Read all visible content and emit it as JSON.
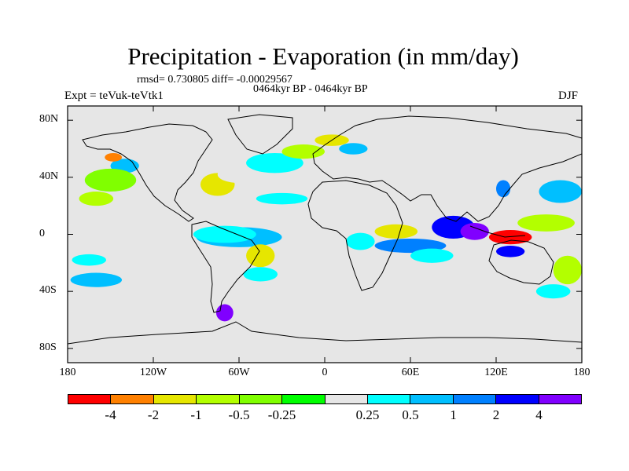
{
  "title": "Precipitation - Evaporation (in mm/day)",
  "stats": "rmsd= 0.730805 diff= -0.00029567",
  "period": "0464kyr BP - 0464kyr BP",
  "experiment": "Expt = teVuk-teVtk1",
  "season": "DJF",
  "map": {
    "lon_range": [
      -180,
      180
    ],
    "lat_range": [
      -90,
      90
    ],
    "background_color": "#e6e6e6",
    "x_ticks": [
      {
        "lon": -180,
        "label": "180"
      },
      {
        "lon": -120,
        "label": "120W"
      },
      {
        "lon": -60,
        "label": "60W"
      },
      {
        "lon": 0,
        "label": "0"
      },
      {
        "lon": 60,
        "label": "60E"
      },
      {
        "lon": 120,
        "label": "120E"
      },
      {
        "lon": 180,
        "label": "180"
      }
    ],
    "y_ticks": [
      {
        "lat": 80,
        "label": "80N"
      },
      {
        "lat": 40,
        "label": "40N"
      },
      {
        "lat": 0,
        "label": "0"
      },
      {
        "lat": -40,
        "label": "40S"
      },
      {
        "lat": -80,
        "label": "80S"
      }
    ],
    "anomalies": [
      {
        "lon": -60,
        "lat": -2,
        "rlon": 30,
        "rlat": 7,
        "level": 8
      },
      {
        "lon": -70,
        "lat": 0,
        "rlon": 22,
        "rlat": 6,
        "level": 7
      },
      {
        "lon": -150,
        "lat": -10,
        "rlon": 28,
        "rlat": 4,
        "level": 6
      },
      {
        "lon": -165,
        "lat": -18,
        "rlon": 12,
        "rlat": 4,
        "level": 7
      },
      {
        "lon": -140,
        "lat": 48,
        "rlon": 10,
        "rlat": 5,
        "level": 8
      },
      {
        "lon": -148,
        "lat": 54,
        "rlon": 6,
        "rlat": 3,
        "level": 1
      },
      {
        "lon": -150,
        "lat": 38,
        "rlon": 18,
        "rlat": 8,
        "level": 4
      },
      {
        "lon": -160,
        "lat": 25,
        "rlon": 12,
        "rlat": 5,
        "level": 3
      },
      {
        "lon": -75,
        "lat": 35,
        "rlon": 12,
        "rlat": 8,
        "level": 2
      },
      {
        "lon": -60,
        "lat": 42,
        "rlon": 15,
        "rlat": 6,
        "level": 6
      },
      {
        "lon": -35,
        "lat": 50,
        "rlon": 20,
        "rlat": 7,
        "level": 7
      },
      {
        "lon": -15,
        "lat": 58,
        "rlon": 15,
        "rlat": 5,
        "level": 3
      },
      {
        "lon": 5,
        "lat": 66,
        "rlon": 12,
        "rlat": 4,
        "level": 2
      },
      {
        "lon": 20,
        "lat": 60,
        "rlon": 10,
        "rlat": 4,
        "level": 8
      },
      {
        "lon": -90,
        "lat": 24,
        "rlon": 15,
        "rlat": 4,
        "level": 6
      },
      {
        "lon": -30,
        "lat": 25,
        "rlon": 18,
        "rlat": 4,
        "level": 7
      },
      {
        "lon": -45,
        "lat": -15,
        "rlon": 10,
        "rlat": 8,
        "level": 2
      },
      {
        "lon": -45,
        "lat": -28,
        "rlon": 12,
        "rlat": 5,
        "level": 7
      },
      {
        "lon": -120,
        "lat": -25,
        "rlon": 25,
        "rlat": 6,
        "level": 6
      },
      {
        "lon": -160,
        "lat": -32,
        "rlon": 18,
        "rlat": 5,
        "level": 8
      },
      {
        "lon": -70,
        "lat": -55,
        "rlon": 6,
        "rlat": 6,
        "level": 11
      },
      {
        "lon": -140,
        "lat": -65,
        "rlon": 30,
        "rlat": 3,
        "level": 6
      },
      {
        "lon": 25,
        "lat": -5,
        "rlon": 10,
        "rlat": 6,
        "level": 7
      },
      {
        "lon": 30,
        "lat": -18,
        "rlon": 8,
        "rlat": 6,
        "level": 6
      },
      {
        "lon": 50,
        "lat": 2,
        "rlon": 15,
        "rlat": 5,
        "level": 2
      },
      {
        "lon": 60,
        "lat": -8,
        "rlon": 25,
        "rlat": 5,
        "level": 9
      },
      {
        "lon": 75,
        "lat": -15,
        "rlon": 15,
        "rlat": 5,
        "level": 7
      },
      {
        "lon": 90,
        "lat": 5,
        "rlon": 15,
        "rlat": 8,
        "level": 10
      },
      {
        "lon": 105,
        "lat": 2,
        "rlon": 10,
        "rlat": 6,
        "level": 11
      },
      {
        "lon": 130,
        "lat": -2,
        "rlon": 15,
        "rlat": 5,
        "level": 0
      },
      {
        "lon": 130,
        "lat": -12,
        "rlon": 10,
        "rlat": 4,
        "level": 10
      },
      {
        "lon": 155,
        "lat": 8,
        "rlon": 20,
        "rlat": 6,
        "level": 3
      },
      {
        "lon": 165,
        "lat": 30,
        "rlon": 15,
        "rlat": 8,
        "level": 8
      },
      {
        "lon": 140,
        "lat": 45,
        "rlon": 15,
        "rlat": 5,
        "level": 6
      },
      {
        "lon": 125,
        "lat": 32,
        "rlon": 5,
        "rlat": 6,
        "level": 9
      },
      {
        "lon": 170,
        "lat": -25,
        "rlon": 10,
        "rlat": 10,
        "level": 3
      },
      {
        "lon": 160,
        "lat": -40,
        "rlon": 12,
        "rlat": 5,
        "level": 7
      },
      {
        "lon": 100,
        "lat": -35,
        "rlon": 20,
        "rlat": 6,
        "level": 6
      }
    ]
  },
  "colorbar": {
    "colors": [
      "#ff0000",
      "#ff8000",
      "#e6e600",
      "#b3ff00",
      "#80ff00",
      "#00ff00",
      "#e6e6e6",
      "#00ffff",
      "#00bfff",
      "#0080ff",
      "#0000ff",
      "#8000ff"
    ],
    "labels": [
      "-4",
      "-2",
      "-1",
      "-0.5",
      "-0.25",
      "0.25",
      "0.5",
      "1",
      "2",
      "4"
    ]
  }
}
